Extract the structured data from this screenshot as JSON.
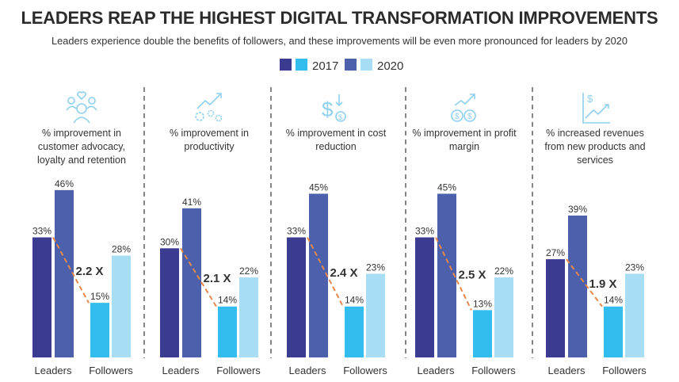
{
  "title": "LEADERS REAP THE HIGHEST DIGITAL TRANSFORMATION IMPROVEMENTS",
  "subtitle": "Leaders experience double the benefits of followers, and these improvements will be even more pronounced for leaders by 2020",
  "chart_data": {
    "type": "bar",
    "legend": {
      "position": "top-center",
      "entries": [
        {
          "label": "2017",
          "colors": [
            "#3a3b91",
            "#33bdee"
          ]
        },
        {
          "label": "2020",
          "colors": [
            "#4c60ab",
            "#a7def3"
          ]
        }
      ]
    },
    "categories": [
      "Leaders",
      "Followers"
    ],
    "colors": {
      "leaders_2017": "#3a3b91",
      "leaders_2020": "#4c60ab",
      "followers_2017": "#33bdee",
      "followers_2020": "#a7def3",
      "ratio_line": "#e8884a",
      "icon": "#8fd0ee"
    },
    "panels": [
      {
        "icon": "people-heart-icon",
        "label": [
          "% improvement in",
          "customer advocacy,",
          "loyalty and retention"
        ],
        "leaders_2017": 33,
        "leaders_2020": 46,
        "followers_2017": 15,
        "followers_2020": 28,
        "ratio": "2.2 X"
      },
      {
        "icon": "gears-trend-icon",
        "label": [
          "% improvement in",
          "productivity"
        ],
        "leaders_2017": 30,
        "leaders_2020": 41,
        "followers_2017": 14,
        "followers_2020": 22,
        "ratio": "2.1 X"
      },
      {
        "icon": "dollar-down-icon",
        "label": [
          "% improvement in cost",
          "reduction"
        ],
        "leaders_2017": 33,
        "leaders_2020": 45,
        "followers_2017": 14,
        "followers_2020": 23,
        "ratio": "2.4 X"
      },
      {
        "icon": "coins-trend-icon",
        "label": [
          "% improvement in profit",
          "margin"
        ],
        "leaders_2017": 33,
        "leaders_2020": 45,
        "followers_2017": 13,
        "followers_2020": 22,
        "ratio": "2.5 X"
      },
      {
        "icon": "revenue-chart-icon",
        "label": [
          "% increased revenues",
          "from new products and",
          "services"
        ],
        "leaders_2017": 27,
        "leaders_2020": 39,
        "followers_2017": 14,
        "followers_2020": 23,
        "ratio": "1.9 X"
      }
    ]
  }
}
